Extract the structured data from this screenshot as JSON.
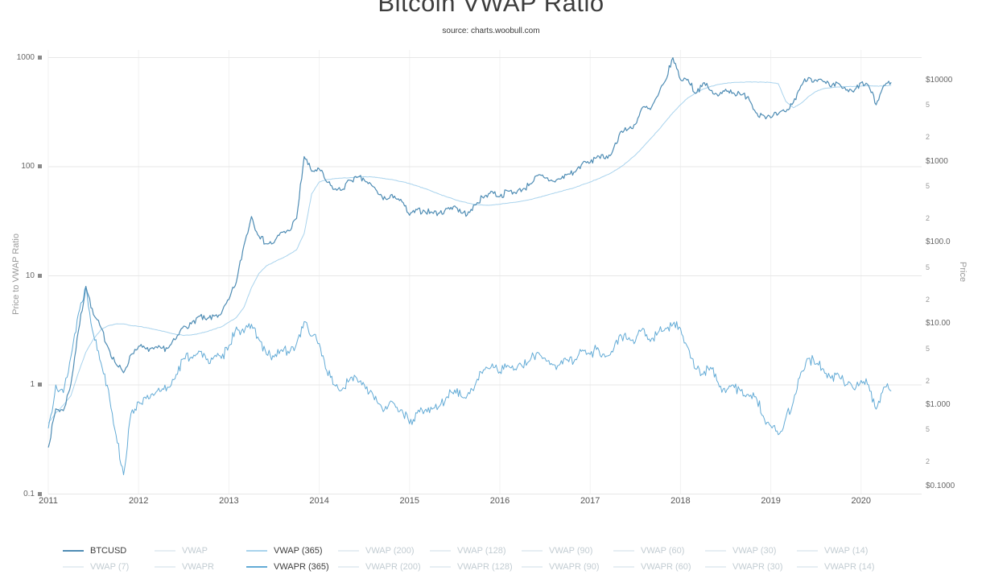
{
  "title": "Bitcoin VWAP Ratio",
  "subtitle": "source: charts.woobull.com",
  "axes": {
    "left": {
      "title": "Price to VWAP Ratio",
      "ticks": [
        {
          "label": "1000",
          "value": 1000
        },
        {
          "label": "100",
          "value": 100
        },
        {
          "label": "10",
          "value": 10
        },
        {
          "label": "1",
          "value": 1
        },
        {
          "label": "0.1",
          "value": 0.1
        }
      ]
    },
    "right": {
      "title": "Price",
      "ticks": [
        {
          "label": "$10000",
          "value": 10000
        },
        {
          "label": "5",
          "value": 5000,
          "minor": true
        },
        {
          "label": "2",
          "value": 2000,
          "minor": true
        },
        {
          "label": "$1000",
          "value": 1000
        },
        {
          "label": "5",
          "value": 500,
          "minor": true
        },
        {
          "label": "2",
          "value": 200,
          "minor": true
        },
        {
          "label": "$100.0",
          "value": 100
        },
        {
          "label": "5",
          "value": 50,
          "minor": true
        },
        {
          "label": "2",
          "value": 20,
          "minor": true
        },
        {
          "label": "$10.00",
          "value": 10
        },
        {
          "label": "5",
          "value": 5,
          "minor": true
        },
        {
          "label": "2",
          "value": 2,
          "minor": true
        },
        {
          "label": "$1.000",
          "value": 1
        },
        {
          "label": "5",
          "value": 0.5,
          "minor": true
        },
        {
          "label": "2",
          "value": 0.2,
          "minor": true
        },
        {
          "label": "$0.1000",
          "value": 0.1
        }
      ]
    },
    "x": {
      "ticks": [
        {
          "label": "2011",
          "value": 2011
        },
        {
          "label": "2012",
          "value": 2012
        },
        {
          "label": "2013",
          "value": 2013
        },
        {
          "label": "2014",
          "value": 2014
        },
        {
          "label": "2015",
          "value": 2015
        },
        {
          "label": "2016",
          "value": 2016
        },
        {
          "label": "2017",
          "value": 2017
        },
        {
          "label": "2018",
          "value": 2018
        },
        {
          "label": "2019",
          "value": 2019
        },
        {
          "label": "2020",
          "value": 2020
        }
      ]
    }
  },
  "legend": {
    "inactive_swatch_color": "#e6eef3",
    "inactive_label_color": "#c2ccd2",
    "items": [
      {
        "label": "BTCUSD",
        "active": true,
        "color": "#4e8cb4"
      },
      {
        "label": "VWAP",
        "active": false
      },
      {
        "label": "VWAP (365)",
        "active": true,
        "color": "#a9d3ed"
      },
      {
        "label": "VWAP (200)",
        "active": false
      },
      {
        "label": "VWAP (128)",
        "active": false
      },
      {
        "label": "VWAP (90)",
        "active": false
      },
      {
        "label": "VWAP (60)",
        "active": false
      },
      {
        "label": "VWAP (30)",
        "active": false
      },
      {
        "label": "VWAP (14)",
        "active": false
      },
      {
        "label": "VWAP (7)",
        "active": false
      },
      {
        "label": "VWAPR",
        "active": false
      },
      {
        "label": "VWAPR (365)",
        "active": true,
        "color": "#63abd6"
      },
      {
        "label": "VWAPR (200)",
        "active": false
      },
      {
        "label": "VWAPR (128)",
        "active": false
      },
      {
        "label": "VWAPR (90)",
        "active": false
      },
      {
        "label": "VWAPR (60)",
        "active": false
      },
      {
        "label": "VWAPR (30)",
        "active": false
      },
      {
        "label": "VWAPR (14)",
        "active": false
      },
      {
        "label": "VWAPR (7)",
        "active": false
      }
    ]
  },
  "chart_data": {
    "type": "line",
    "title": "Bitcoin VWAP Ratio",
    "subtitle": "source: charts.woobull.com",
    "x_axis": "year",
    "x_start": 2011.0,
    "x_step": 0.0833333,
    "x_range": [
      2011,
      2020.42
    ],
    "y_left": {
      "label": "Price to VWAP Ratio",
      "scale": "log",
      "range": [
        0.1,
        1000
      ]
    },
    "y_right": {
      "label": "Price",
      "scale": "log",
      "range": [
        0.1,
        20000
      ]
    },
    "grid": true,
    "legend_position": "bottom",
    "series": [
      {
        "name": "BTCUSD",
        "axis": "right",
        "color": "#4e8cb4",
        "values": [
          0.3,
          0.9,
          0.85,
          1.8,
          8.2,
          29,
          13,
          9,
          5.0,
          3.2,
          2.5,
          4.2,
          5.3,
          4.9,
          4.9,
          5.0,
          5.1,
          6.6,
          9.4,
          10.0,
          12.4,
          11.2,
          12.5,
          13.4,
          20,
          33,
          93,
          210,
          120,
          97,
          100,
          135,
          140,
          200,
          1150,
          760,
          810,
          560,
          455,
          445,
          590,
          635,
          590,
          505,
          390,
          340,
          375,
          320,
          218,
          254,
          245,
          236,
          232,
          262,
          284,
          230,
          236,
          312,
          376,
          428,
          370,
          436,
          415,
          450,
          530,
          670,
          625,
          575,
          608,
          700,
          742,
          960,
          970,
          1180,
          1080,
          1350,
          2300,
          2480,
          2870,
          4700,
          4360,
          6450,
          9900,
          19000,
          10200,
          10300,
          6900,
          9240,
          7500,
          6400,
          7780,
          7040,
          6620,
          6320,
          4020,
          3740,
          3460,
          3850,
          4100,
          5350,
          8570,
          10800,
          10100,
          9630,
          8290,
          9200,
          7570,
          7190,
          9350,
          8600,
          5000,
          8660,
          9450
        ]
      },
      {
        "name": "VWAP (365)",
        "axis": "right",
        "color": "#a9d3ed",
        "values": [
          0.6,
          0.8,
          1.0,
          1.3,
          2.5,
          4.5,
          6.5,
          8.5,
          9.5,
          10,
          10,
          9.5,
          9.3,
          9.0,
          8.6,
          8.2,
          7.8,
          7.4,
          7.2,
          7.3,
          7.6,
          8.0,
          8.6,
          9.2,
          10.5,
          12,
          16,
          28,
          42,
          52,
          58,
          64,
          72,
          82,
          130,
          400,
          560,
          600,
          615,
          625,
          630,
          645,
          650,
          645,
          630,
          610,
          590,
          565,
          535,
          500,
          465,
          430,
          395,
          365,
          340,
          320,
          305,
          295,
          290,
          292,
          298,
          306,
          315,
          326,
          340,
          358,
          380,
          403,
          427,
          452,
          480,
          520,
          560,
          610,
          670,
          745,
          850,
          1000,
          1200,
          1500,
          1900,
          2400,
          3100,
          4000,
          5000,
          6100,
          7000,
          7800,
          8400,
          8900,
          9200,
          9400,
          9500,
          9550,
          9550,
          9500,
          9400,
          9100,
          5500,
          4600,
          5200,
          6300,
          7300,
          7900,
          8100,
          8300,
          8400,
          8400,
          8500,
          8600,
          8500,
          8500,
          8700
        ]
      },
      {
        "name": "VWAPR (365)",
        "axis": "left",
        "color": "#63abd6",
        "values": [
          0.4,
          1.0,
          0.85,
          1.8,
          4.5,
          8.0,
          2.9,
          1.6,
          0.9,
          0.35,
          0.15,
          0.55,
          0.7,
          0.75,
          0.8,
          0.88,
          0.95,
          1.25,
          1.75,
          1.8,
          2.05,
          1.7,
          1.8,
          1.75,
          2.3,
          3.4,
          3.0,
          3.6,
          2.6,
          1.9,
          1.8,
          2.1,
          1.95,
          2.4,
          3.8,
          2.8,
          2.4,
          1.35,
          1.0,
          0.9,
          1.1,
          1.15,
          1.0,
          0.86,
          0.67,
          0.6,
          0.67,
          0.59,
          0.44,
          0.55,
          0.58,
          0.6,
          0.64,
          0.78,
          0.9,
          0.77,
          0.83,
          1.13,
          1.38,
          1.56,
          1.32,
          1.51,
          1.4,
          1.47,
          1.67,
          1.99,
          1.76,
          1.53,
          1.55,
          1.7,
          1.72,
          2.09,
          1.9,
          2.2,
          1.8,
          2.0,
          2.9,
          2.6,
          2.5,
          3.3,
          2.5,
          3.0,
          3.3,
          3.6,
          3.3,
          2.2,
          1.4,
          1.25,
          1.45,
          1.05,
          0.85,
          1.0,
          0.88,
          0.82,
          0.78,
          0.52,
          0.42,
          0.35,
          0.5,
          0.7,
          1.3,
          1.75,
          1.55,
          1.4,
          1.15,
          1.25,
          1.0,
          0.92,
          1.1,
          1.0,
          0.6,
          0.95,
          0.88
        ]
      }
    ]
  }
}
